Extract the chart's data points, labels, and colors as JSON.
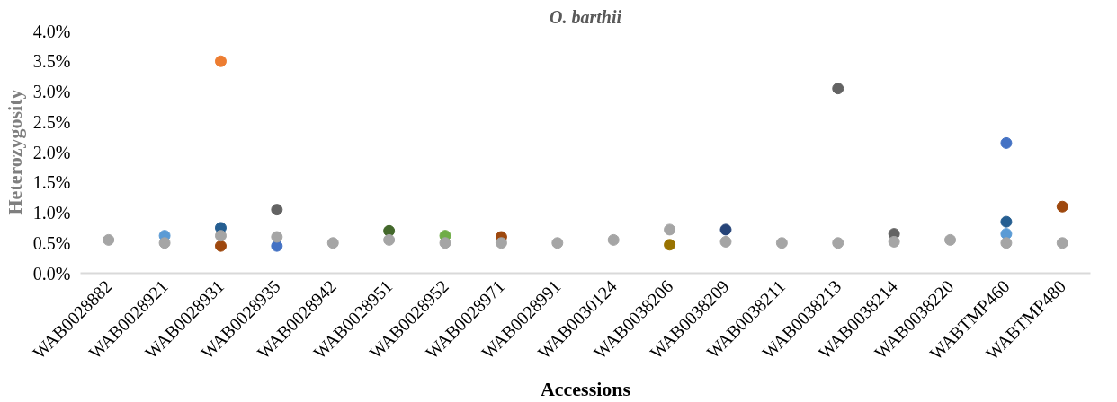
{
  "chart_data": {
    "type": "scatter",
    "title": "O. barthii",
    "xlabel": "Accessions",
    "ylabel": "Heterozygosity",
    "marker": "circle",
    "categories": [
      "WAB0028882",
      "WAB0028921",
      "WAB0028931",
      "WAB0028935",
      "WAB0028942",
      "WAB0028951",
      "WAB0028952",
      "WAB0028971",
      "WAB0028991",
      "WAB0030124",
      "WAB0038206",
      "WAB0038209",
      "WAB0038211",
      "WAB0038213",
      "WAB0038214",
      "WAB0038220",
      "WABTMP460",
      "WABTMP480"
    ],
    "ylim": [
      0,
      4
    ],
    "yticks": [
      {
        "value": 0,
        "label": "0.0%"
      },
      {
        "value": 0.5,
        "label": "0.5%"
      },
      {
        "value": 1,
        "label": "1.0%"
      },
      {
        "value": 1.5,
        "label": "1.5%"
      },
      {
        "value": 2,
        "label": "2.0%"
      },
      {
        "value": 2.5,
        "label": "2.5%"
      },
      {
        "value": 3,
        "label": "3.0%"
      },
      {
        "value": 3.5,
        "label": "3.5%"
      },
      {
        "value": 4,
        "label": "4.0%"
      }
    ],
    "series": [
      {
        "color": "#4472c4",
        "values": [
          null,
          null,
          null,
          0.45,
          null,
          null,
          null,
          null,
          null,
          null,
          null,
          null,
          null,
          null,
          null,
          null,
          2.15,
          null
        ]
      },
      {
        "color": "#ed7d31",
        "values": [
          null,
          null,
          3.5,
          null,
          null,
          null,
          null,
          null,
          null,
          null,
          null,
          null,
          null,
          null,
          null,
          null,
          null,
          null
        ]
      },
      {
        "color": "#5b9bd5",
        "values": [
          null,
          0.62,
          null,
          null,
          null,
          null,
          null,
          null,
          null,
          null,
          null,
          null,
          null,
          null,
          null,
          null,
          0.65,
          null
        ]
      },
      {
        "color": "#70ad47",
        "values": [
          null,
          null,
          null,
          null,
          null,
          null,
          0.62,
          null,
          null,
          null,
          null,
          null,
          null,
          null,
          null,
          null,
          null,
          null
        ]
      },
      {
        "color": "#264478",
        "values": [
          null,
          null,
          null,
          null,
          null,
          null,
          null,
          null,
          null,
          null,
          null,
          0.72,
          null,
          null,
          null,
          null,
          null,
          null
        ]
      },
      {
        "color": "#9e480e",
        "values": [
          null,
          null,
          0.45,
          null,
          null,
          null,
          null,
          0.6,
          null,
          null,
          null,
          null,
          null,
          null,
          null,
          null,
          null,
          1.1
        ]
      },
      {
        "color": "#636363",
        "values": [
          null,
          null,
          null,
          1.05,
          null,
          null,
          null,
          null,
          null,
          null,
          null,
          null,
          null,
          3.05,
          0.65,
          null,
          null,
          null
        ]
      },
      {
        "color": "#997300",
        "values": [
          null,
          null,
          null,
          null,
          null,
          null,
          null,
          null,
          null,
          null,
          0.47,
          null,
          null,
          null,
          null,
          null,
          null,
          null
        ]
      },
      {
        "color": "#255e91",
        "values": [
          null,
          null,
          0.75,
          null,
          null,
          null,
          null,
          null,
          null,
          null,
          null,
          null,
          null,
          null,
          null,
          null,
          0.85,
          null
        ]
      },
      {
        "color": "#43682b",
        "values": [
          null,
          null,
          null,
          null,
          null,
          0.7,
          null,
          null,
          null,
          null,
          null,
          null,
          null,
          null,
          null,
          null,
          null,
          null
        ]
      },
      {
        "color": "#a5a5a5",
        "values": [
          0.55,
          0.5,
          0.62,
          0.6,
          0.5,
          0.55,
          0.5,
          0.5,
          0.5,
          0.55,
          0.72,
          0.52,
          0.5,
          0.5,
          0.52,
          0.55,
          0.5,
          0.5
        ]
      }
    ]
  }
}
